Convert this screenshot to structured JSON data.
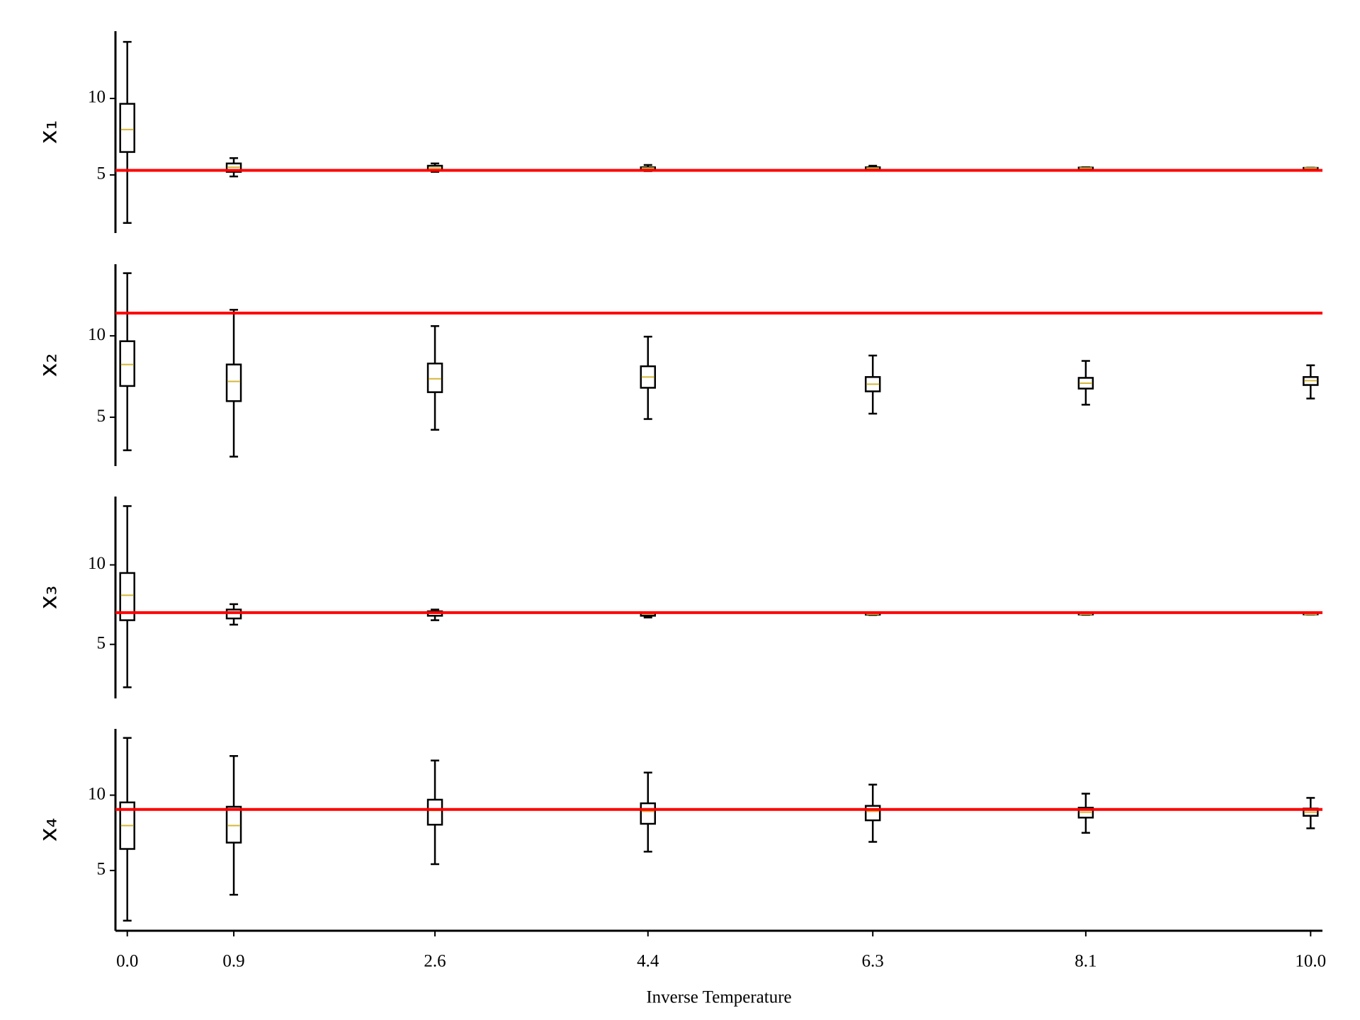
{
  "chart_data": [
    {
      "type": "box",
      "ylabel": "x₁",
      "x": [
        0.0,
        0.9,
        2.6,
        4.4,
        6.3,
        8.1,
        10.0
      ],
      "whisker_low": [
        1.86,
        4.9,
        5.2,
        5.25,
        5.35,
        5.4,
        5.43
      ],
      "q1": [
        6.5,
        5.2,
        5.3,
        5.35,
        5.4,
        5.42,
        5.44
      ],
      "median": [
        7.97,
        5.5,
        5.45,
        5.45,
        5.45,
        5.45,
        5.45
      ],
      "q3": [
        9.65,
        5.75,
        5.6,
        5.5,
        5.5,
        5.48,
        5.46
      ],
      "whisker_high": [
        13.7,
        6.1,
        5.75,
        5.65,
        5.6,
        5.5,
        5.47
      ],
      "reference_line": 5.3,
      "box_color": "#000000",
      "median_color": "#d4b73a",
      "reference_color": "#ff0000",
      "xlim": [
        -0.1,
        10.1
      ],
      "ylim": [
        1.2,
        14.4
      ],
      "yticks": [
        5,
        10
      ]
    },
    {
      "type": "box",
      "ylabel": "x₂",
      "x": [
        0.0,
        0.9,
        2.6,
        4.4,
        6.3,
        8.1,
        10.0
      ],
      "whisker_low": [
        2.97,
        2.58,
        4.23,
        4.89,
        5.22,
        5.77,
        6.15
      ],
      "q1": [
        6.92,
        5.99,
        6.54,
        6.81,
        6.59,
        6.76,
        6.98
      ],
      "median": [
        8.24,
        7.2,
        7.36,
        7.47,
        7.03,
        7.09,
        7.25
      ],
      "q3": [
        9.67,
        8.24,
        8.3,
        8.13,
        7.47,
        7.42,
        7.47
      ],
      "whisker_high": [
        13.85,
        11.6,
        10.6,
        9.95,
        8.79,
        8.46,
        8.19
      ],
      "reference_line": 11.4,
      "box_color": "#000000",
      "median_color": "#d4b73a",
      "reference_color": "#ff0000",
      "xlim": [
        -0.1,
        10.1
      ],
      "ylim": [
        2.0,
        14.4
      ],
      "yticks": [
        5,
        10
      ]
    },
    {
      "type": "box",
      "ylabel": "x₃",
      "x": [
        0.0,
        0.9,
        2.6,
        4.4,
        6.3,
        8.1,
        10.0
      ],
      "whisker_low": [
        2.3,
        6.24,
        6.52,
        6.69,
        6.85,
        6.86,
        6.88
      ],
      "q1": [
        6.52,
        6.63,
        6.8,
        6.8,
        6.87,
        6.88,
        6.89
      ],
      "median": [
        8.09,
        6.97,
        6.97,
        6.91,
        6.9,
        6.9,
        6.9
      ],
      "q3": [
        9.49,
        7.19,
        7.08,
        6.97,
        6.92,
        6.91,
        6.91
      ],
      "whisker_high": [
        13.7,
        7.53,
        7.19,
        7.02,
        6.95,
        6.93,
        6.92
      ],
      "reference_line": 7.0,
      "box_color": "#000000",
      "median_color": "#d4b73a",
      "reference_color": "#ff0000",
      "xlim": [
        -0.1,
        10.1
      ],
      "ylim": [
        1.6,
        14.3
      ],
      "yticks": [
        5,
        10
      ]
    },
    {
      "type": "box",
      "ylabel": "x₄",
      "xlabel": "Inverse Temperature",
      "x": [
        0.0,
        0.9,
        2.6,
        4.4,
        6.3,
        8.1,
        10.0
      ],
      "whisker_low": [
        1.67,
        3.39,
        5.42,
        6.25,
        6.9,
        7.5,
        7.8
      ],
      "q1": [
        6.43,
        6.85,
        8.04,
        8.1,
        8.33,
        8.51,
        8.63
      ],
      "median": [
        7.98,
        7.98,
        8.99,
        8.93,
        8.93,
        8.87,
        8.87
      ],
      "q3": [
        9.52,
        9.23,
        9.7,
        9.46,
        9.29,
        9.17,
        9.11
      ],
      "whisker_high": [
        13.8,
        12.6,
        12.3,
        11.5,
        10.7,
        10.1,
        9.82
      ],
      "reference_line": 9.05,
      "box_color": "#000000",
      "median_color": "#d4b73a",
      "reference_color": "#ff0000",
      "xlim": [
        -0.1,
        10.1
      ],
      "ylim": [
        1.0,
        14.4
      ],
      "yticks": [
        5,
        10
      ],
      "xticks": [
        {
          "value": 0.0,
          "label": "0.0"
        },
        {
          "value": 0.9,
          "label": "0.9"
        },
        {
          "value": 2.6,
          "label": "2.6"
        },
        {
          "value": 4.4,
          "label": "4.4"
        },
        {
          "value": 6.3,
          "label": "6.3"
        },
        {
          "value": 8.1,
          "label": "8.1"
        },
        {
          "value": 10.0,
          "label": "10.0"
        }
      ]
    }
  ]
}
